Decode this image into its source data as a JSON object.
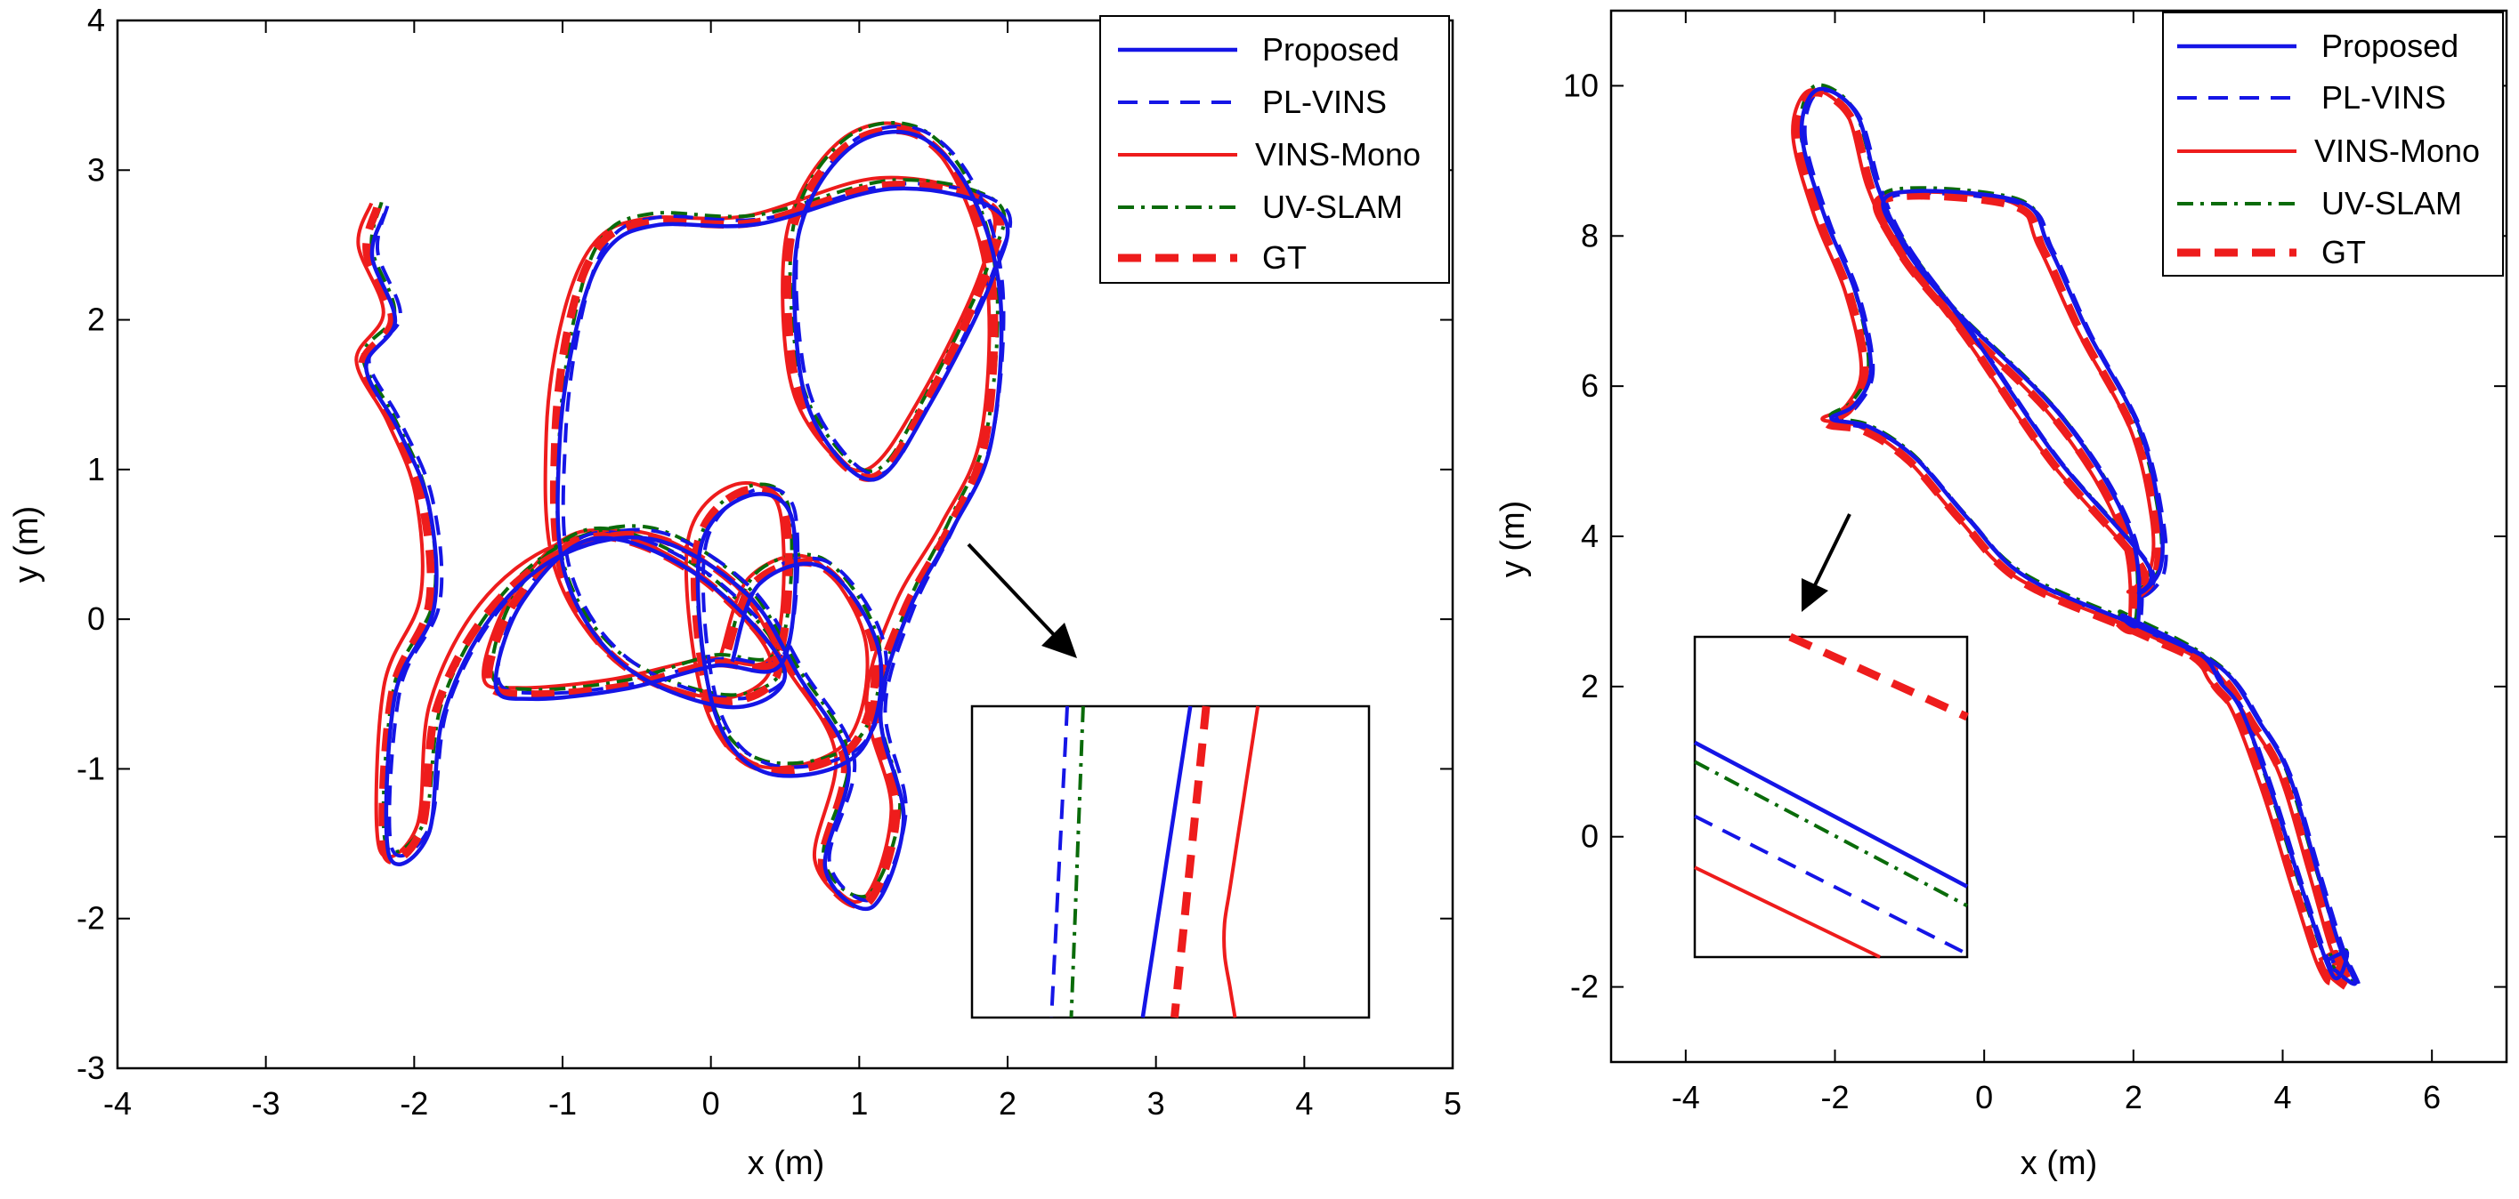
{
  "colors": {
    "proposed": "#1515e6",
    "pl_vins": "#1515e6",
    "vins_mono": "#ee1c1c",
    "uv_slam": "#0a6b0a",
    "gt": "#ee1c1c"
  },
  "chart_data": [
    {
      "type": "line",
      "xlabel": "x (m)",
      "ylabel": "y (m)",
      "xlim": [
        -4,
        5
      ],
      "ylim": [
        -3,
        4
      ],
      "xticks": [
        "-4",
        "-3",
        "-2",
        "-1",
        "0",
        "1",
        "2",
        "3",
        "4",
        "5"
      ],
      "yticks": [
        "-3",
        "-2",
        "-1",
        "0",
        "1",
        "2",
        "3",
        "4"
      ],
      "legend_position": "top-right",
      "series": [
        {
          "name": "Proposed",
          "style": "solid-blue"
        },
        {
          "name": "PL-VINS",
          "style": "dashed-blue"
        },
        {
          "name": "VINS-Mono",
          "style": "solid-red"
        },
        {
          "name": "UV-SLAM",
          "style": "dashdot-green"
        },
        {
          "name": "GT",
          "style": "thick-dashed-red"
        }
      ],
      "trajectory_gt": [
        [
          -2.25,
          2.75
        ],
        [
          -2.32,
          2.45
        ],
        [
          -2.15,
          2.0
        ],
        [
          -2.35,
          1.7
        ],
        [
          -2.15,
          1.3
        ],
        [
          -1.95,
          0.8
        ],
        [
          -1.9,
          0.1
        ],
        [
          -2.15,
          -0.5
        ],
        [
          -2.2,
          -1.55
        ],
        [
          -1.95,
          -1.4
        ],
        [
          -1.85,
          -0.6
        ],
        [
          -1.5,
          0.05
        ],
        [
          -1.0,
          0.45
        ],
        [
          -0.4,
          0.55
        ],
        [
          0.2,
          0.2
        ],
        [
          0.55,
          -0.35
        ],
        [
          0.9,
          -0.95
        ],
        [
          0.75,
          -1.65
        ],
        [
          1.05,
          -1.9
        ],
        [
          1.25,
          -1.3
        ],
        [
          1.1,
          -0.6
        ],
        [
          1.3,
          0.05
        ],
        [
          1.6,
          0.6
        ],
        [
          1.85,
          1.2
        ],
        [
          1.9,
          2.2
        ],
        [
          1.7,
          2.9
        ],
        [
          1.35,
          3.25
        ],
        [
          0.9,
          3.15
        ],
        [
          0.55,
          2.6
        ],
        [
          0.55,
          1.7
        ],
        [
          0.75,
          1.2
        ],
        [
          1.1,
          0.95
        ],
        [
          1.45,
          1.45
        ],
        [
          1.85,
          2.3
        ],
        [
          1.9,
          2.75
        ],
        [
          1.2,
          2.9
        ],
        [
          0.3,
          2.65
        ],
        [
          -0.4,
          2.65
        ],
        [
          -0.75,
          2.5
        ],
        [
          -0.95,
          2.0
        ],
        [
          -1.05,
          1.2
        ],
        [
          -1.0,
          0.3
        ],
        [
          -0.6,
          -0.3
        ],
        [
          0.1,
          -0.55
        ],
        [
          0.45,
          -0.3
        ],
        [
          -0.1,
          0.3
        ],
        [
          -0.8,
          0.55
        ],
        [
          -1.3,
          0.15
        ],
        [
          -1.5,
          -0.4
        ],
        [
          -1.25,
          -0.5
        ],
        [
          -0.6,
          -0.45
        ],
        [
          0.0,
          -0.3
        ],
        [
          0.45,
          -0.25
        ],
        [
          0.5,
          0.7
        ],
        [
          0.2,
          0.85
        ],
        [
          -0.1,
          0.45
        ],
        [
          0.0,
          -0.6
        ],
        [
          0.35,
          -1.0
        ],
        [
          0.95,
          -0.85
        ],
        [
          1.1,
          -0.2
        ],
        [
          0.75,
          0.35
        ],
        [
          0.3,
          0.25
        ],
        [
          0.1,
          -0.25
        ]
      ],
      "inset": {
        "xlim": [
          0,
          1
        ],
        "ylim": [
          0,
          1
        ],
        "series_x": {
          "pl_vins": [
            0.2,
            0.24
          ],
          "uv_slam": [
            0.25,
            0.28
          ],
          "proposed": [
            0.43,
            0.55
          ],
          "gt": [
            0.51,
            0.59
          ],
          "vins_mono": [
            0.6,
            0.72
          ]
        }
      }
    },
    {
      "type": "line",
      "xlabel": "x (m)",
      "ylabel": "y (m)",
      "xlim": [
        -5,
        7
      ],
      "ylim": [
        -3,
        11
      ],
      "xticks": [
        "-4",
        "-2",
        "0",
        "2",
        "4",
        "6"
      ],
      "yticks": [
        "-2",
        "0",
        "2",
        "4",
        "6",
        "8",
        "10"
      ],
      "legend_position": "top-right",
      "series": [
        {
          "name": "Proposed",
          "style": "solid-blue"
        },
        {
          "name": "PL-VINS",
          "style": "dashed-blue"
        },
        {
          "name": "VINS-Mono",
          "style": "solid-red"
        },
        {
          "name": "UV-SLAM",
          "style": "dashdot-green"
        },
        {
          "name": "GT",
          "style": "thick-dashed-red"
        }
      ],
      "trajectory_gt": [
        [
          4.6,
          -1.8
        ],
        [
          4.9,
          -2.0
        ],
        [
          4.7,
          -1.5
        ],
        [
          4.4,
          -0.5
        ],
        [
          4.0,
          0.8
        ],
        [
          3.6,
          1.5
        ],
        [
          3.1,
          2.2
        ],
        [
          2.1,
          2.7
        ],
        [
          0.5,
          3.4
        ],
        [
          -0.3,
          4.2
        ],
        [
          -1.0,
          5.0
        ],
        [
          -1.6,
          5.4
        ],
        [
          -2.1,
          5.5
        ],
        [
          -1.8,
          5.7
        ],
        [
          -1.6,
          6.2
        ],
        [
          -1.8,
          7.2
        ],
        [
          -2.2,
          8.2
        ],
        [
          -2.5,
          9.3
        ],
        [
          -2.3,
          9.9
        ],
        [
          -1.8,
          9.6
        ],
        [
          -1.5,
          8.6
        ],
        [
          -1.1,
          7.8
        ],
        [
          -0.2,
          6.6
        ],
        [
          0.9,
          5.0
        ],
        [
          2.1,
          3.6
        ],
        [
          2.0,
          3.2
        ],
        [
          2.3,
          3.5
        ],
        [
          2.3,
          4.2
        ],
        [
          2.0,
          5.4
        ],
        [
          1.3,
          6.7
        ],
        [
          0.8,
          7.8
        ],
        [
          0.4,
          8.4
        ],
        [
          -1.3,
          8.5
        ],
        [
          -1.2,
          7.9
        ],
        [
          -0.5,
          7.0
        ],
        [
          1.0,
          5.5
        ],
        [
          1.9,
          4.0
        ],
        [
          2.0,
          2.8
        ],
        [
          1.8,
          2.9
        ],
        [
          2.8,
          2.4
        ],
        [
          3.1,
          2.0
        ],
        [
          3.4,
          1.6
        ],
        [
          3.8,
          0.5
        ],
        [
          4.2,
          -0.8
        ],
        [
          4.6,
          -1.9
        ],
        [
          4.8,
          -1.6
        ],
        [
          4.55,
          -1.7
        ]
      ],
      "inset": {
        "xlim": [
          0,
          1
        ],
        "ylim": [
          0,
          1
        ],
        "lines": {
          "gt": [
            [
              0.35,
              1.0
            ],
            [
              1.0,
              0.75
            ]
          ],
          "proposed": [
            [
              0.0,
              0.67
            ],
            [
              1.0,
              0.22
            ]
          ],
          "uv_slam": [
            [
              0.0,
              0.61
            ],
            [
              1.0,
              0.16
            ]
          ],
          "pl_vins": [
            [
              0.0,
              0.44
            ],
            [
              1.0,
              0.01
            ]
          ],
          "vins_mono": [
            [
              0.0,
              0.28
            ],
            [
              0.68,
              0.0
            ]
          ]
        }
      }
    }
  ]
}
